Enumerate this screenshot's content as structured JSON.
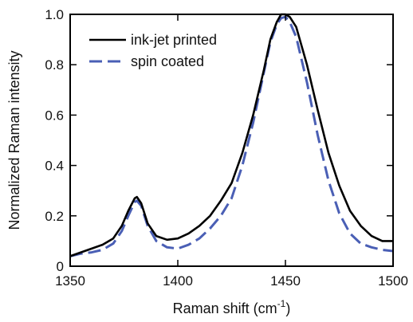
{
  "chart_data": {
    "type": "line",
    "xlabel": "Raman shift (cm",
    "xlabel_sup": "-1",
    "xlabel_close": ")",
    "ylabel": "Normalized Raman intensity",
    "xlim": [
      1350,
      1500
    ],
    "ylim": [
      0,
      1.0
    ],
    "x_ticks": [
      1350,
      1400,
      1450,
      1500
    ],
    "y_ticks": [
      0,
      0.2,
      0.4,
      0.6,
      0.8,
      1.0
    ],
    "x_tick_labels": [
      "1350",
      "1400",
      "1450",
      "1500"
    ],
    "y_tick_labels": [
      "0",
      "0.2",
      "0.4",
      "0.6",
      "0.8",
      "1.0"
    ],
    "grid": false,
    "legend_position": "top-left",
    "series": [
      {
        "name": "ink-jet printed",
        "color": "#000000",
        "dash": "solid",
        "x": [
          1350,
          1355,
          1360,
          1365,
          1370,
          1374,
          1377,
          1380,
          1381,
          1383,
          1386,
          1390,
          1395,
          1400,
          1405,
          1410,
          1415,
          1420,
          1425,
          1430,
          1435,
          1440,
          1443,
          1446,
          1448,
          1450,
          1452,
          1455,
          1460,
          1465,
          1470,
          1475,
          1480,
          1485,
          1490,
          1495,
          1500
        ],
        "y": [
          0.04,
          0.055,
          0.07,
          0.085,
          0.11,
          0.16,
          0.22,
          0.27,
          0.275,
          0.25,
          0.17,
          0.12,
          0.105,
          0.11,
          0.13,
          0.16,
          0.2,
          0.26,
          0.33,
          0.45,
          0.6,
          0.78,
          0.9,
          0.97,
          1.0,
          1.0,
          0.99,
          0.95,
          0.8,
          0.62,
          0.45,
          0.32,
          0.22,
          0.16,
          0.12,
          0.1,
          0.1
        ]
      },
      {
        "name": "spin coated",
        "color": "#4A5FB5",
        "dash": "dashed",
        "x": [
          1350,
          1355,
          1360,
          1365,
          1370,
          1374,
          1377,
          1380,
          1381,
          1383,
          1386,
          1390,
          1395,
          1400,
          1405,
          1410,
          1415,
          1420,
          1425,
          1430,
          1435,
          1440,
          1443,
          1446,
          1448,
          1450,
          1452,
          1455,
          1460,
          1465,
          1470,
          1475,
          1480,
          1485,
          1490,
          1495,
          1500
        ],
        "y": [
          0.04,
          0.05,
          0.055,
          0.065,
          0.09,
          0.14,
          0.2,
          0.255,
          0.26,
          0.24,
          0.16,
          0.1,
          0.075,
          0.07,
          0.085,
          0.11,
          0.15,
          0.2,
          0.27,
          0.4,
          0.57,
          0.77,
          0.89,
          0.96,
          0.985,
          0.99,
          0.97,
          0.91,
          0.73,
          0.52,
          0.34,
          0.21,
          0.13,
          0.09,
          0.075,
          0.065,
          0.06
        ]
      }
    ]
  }
}
